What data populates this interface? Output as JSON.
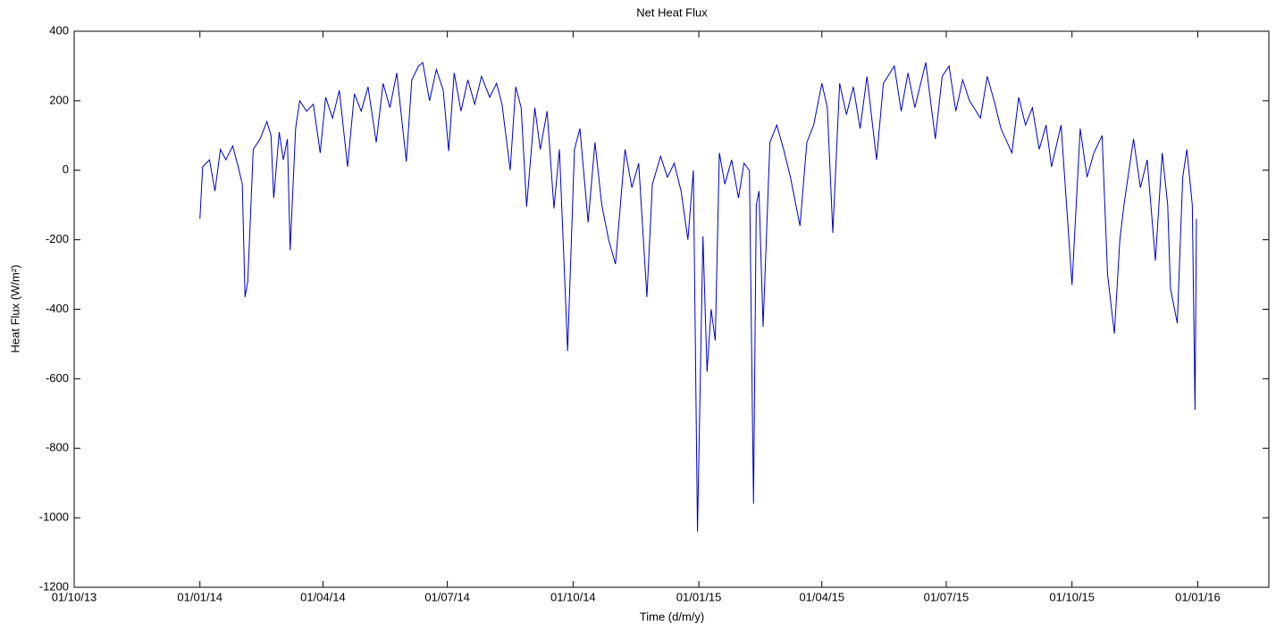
{
  "chart_data": {
    "type": "line",
    "title": "Net Heat Flux",
    "x_label": "Time (d/m/y)",
    "y_label": "Heat Flux (W/m²)",
    "color": "#0000c0",
    "x": [
      "2014-01-01",
      "2014-01-03",
      "2014-01-08",
      "2014-01-12",
      "2014-01-16",
      "2014-01-20",
      "2014-01-25",
      "2014-01-29",
      "2014-02-01",
      "2014-02-03",
      "2014-02-05",
      "2014-02-09",
      "2014-02-14",
      "2014-02-19",
      "2014-02-22",
      "2014-02-24",
      "2014-02-28",
      "2014-03-03",
      "2014-03-06",
      "2014-03-08",
      "2014-03-12",
      "2014-03-15",
      "2014-03-20",
      "2014-03-25",
      "2014-03-30",
      "2014-04-03",
      "2014-04-08",
      "2014-04-13",
      "2014-04-19",
      "2014-04-24",
      "2014-04-29",
      "2014-05-04",
      "2014-05-10",
      "2014-05-15",
      "2014-05-20",
      "2014-05-25",
      "2014-06-01",
      "2014-06-05",
      "2014-06-10",
      "2014-06-13",
      "2014-06-18",
      "2014-06-23",
      "2014-06-28",
      "2014-07-02",
      "2014-07-06",
      "2014-07-11",
      "2014-07-16",
      "2014-07-21",
      "2014-07-26",
      "2014-08-01",
      "2014-08-06",
      "2014-08-10",
      "2014-08-16",
      "2014-08-20",
      "2014-08-24",
      "2014-08-28",
      "2014-09-03",
      "2014-09-07",
      "2014-09-12",
      "2014-09-17",
      "2014-09-21",
      "2014-09-27",
      "2014-10-02",
      "2014-10-06",
      "2014-10-12",
      "2014-10-17",
      "2014-10-22",
      "2014-10-27",
      "2014-11-01",
      "2014-11-08",
      "2014-11-13",
      "2014-11-18",
      "2014-11-24",
      "2014-11-28",
      "2014-12-04",
      "2014-12-09",
      "2014-12-14",
      "2014-12-19",
      "2014-12-24",
      "2014-12-28",
      "2014-12-31",
      "2015-01-04",
      "2015-01-07",
      "2015-01-10",
      "2015-01-13",
      "2015-01-16",
      "2015-01-20",
      "2015-01-25",
      "2015-01-30",
      "2015-02-03",
      "2015-02-07",
      "2015-02-10",
      "2015-02-12",
      "2015-02-14",
      "2015-02-17",
      "2015-02-22",
      "2015-02-27",
      "2015-03-04",
      "2015-03-09",
      "2015-03-16",
      "2015-03-21",
      "2015-03-26",
      "2015-04-01",
      "2015-04-05",
      "2015-04-09",
      "2015-04-14",
      "2015-04-19",
      "2015-04-24",
      "2015-04-29",
      "2015-05-04",
      "2015-05-11",
      "2015-05-16",
      "2015-05-24",
      "2015-05-29",
      "2015-06-03",
      "2015-06-08",
      "2015-06-16",
      "2015-06-23",
      "2015-06-28",
      "2015-07-03",
      "2015-07-08",
      "2015-07-13",
      "2015-07-18",
      "2015-07-26",
      "2015-07-31",
      "2015-08-05",
      "2015-08-10",
      "2015-08-18",
      "2015-08-23",
      "2015-08-28",
      "2015-09-02",
      "2015-09-07",
      "2015-09-12",
      "2015-09-16",
      "2015-09-23",
      "2015-10-01",
      "2015-10-07",
      "2015-10-12",
      "2015-10-17",
      "2015-10-23",
      "2015-10-27",
      "2015-11-01",
      "2015-11-05",
      "2015-11-08",
      "2015-11-15",
      "2015-11-20",
      "2015-11-25",
      "2015-12-01",
      "2015-12-06",
      "2015-12-10",
      "2015-12-12",
      "2015-12-17",
      "2015-12-21",
      "2015-12-24",
      "2015-12-28",
      "2015-12-30",
      "2015-12-31"
    ],
    "values": [
      -140,
      10,
      30,
      -60,
      60,
      30,
      70,
      10,
      -40,
      -365,
      -320,
      60,
      90,
      140,
      100,
      -80,
      110,
      30,
      90,
      -230,
      120,
      200,
      170,
      190,
      50,
      210,
      150,
      230,
      10,
      220,
      170,
      240,
      80,
      250,
      180,
      280,
      25,
      260,
      300,
      310,
      200,
      290,
      230,
      55,
      280,
      170,
      260,
      190,
      270,
      210,
      250,
      190,
      0,
      240,
      180,
      -105,
      180,
      60,
      170,
      -110,
      60,
      -520,
      60,
      120,
      -150,
      80,
      -100,
      -200,
      -270,
      60,
      -50,
      20,
      -365,
      -40,
      40,
      -20,
      20,
      -60,
      -200,
      0,
      -1040,
      -190,
      -580,
      -400,
      -490,
      50,
      -40,
      30,
      -80,
      20,
      0,
      -960,
      -100,
      -60,
      -450,
      80,
      130,
      60,
      -20,
      -160,
      80,
      130,
      250,
      180,
      -180,
      250,
      160,
      240,
      120,
      270,
      30,
      250,
      300,
      170,
      280,
      180,
      310,
      90,
      270,
      300,
      170,
      260,
      200,
      150,
      270,
      200,
      120,
      50,
      210,
      130,
      180,
      60,
      130,
      10,
      130,
      -330,
      120,
      -20,
      50,
      100,
      -300,
      -470,
      -200,
      -100,
      90,
      -50,
      30,
      -260,
      50,
      -100,
      -340,
      -440,
      -20,
      60,
      -100,
      -690,
      -140
    ],
    "xlim": [
      "2013-10-01",
      "2016-02-22"
    ],
    "xticks": [
      {
        "value": "2013-10-01",
        "label": "01/10/13"
      },
      {
        "value": "2014-01-01",
        "label": "01/01/14"
      },
      {
        "value": "2014-04-01",
        "label": "01/04/14"
      },
      {
        "value": "2014-07-01",
        "label": "01/07/14"
      },
      {
        "value": "2014-10-01",
        "label": "01/10/14"
      },
      {
        "value": "2015-01-01",
        "label": "01/01/15"
      },
      {
        "value": "2015-04-01",
        "label": "01/04/15"
      },
      {
        "value": "2015-07-01",
        "label": "01/07/15"
      },
      {
        "value": "2015-10-01",
        "label": "01/10/15"
      },
      {
        "value": "2016-01-01",
        "label": "01/01/16"
      }
    ],
    "ylim": [
      -1200,
      400
    ],
    "yticks": [
      -1200,
      -1000,
      -800,
      -600,
      -400,
      -200,
      0,
      200,
      400
    ]
  }
}
